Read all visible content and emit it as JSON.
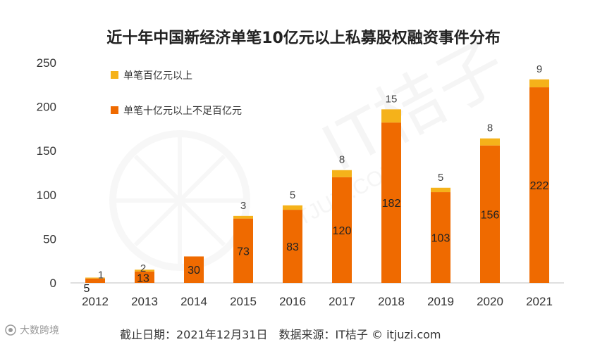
{
  "title": "近十年中国新经济单笔10亿元以上私募股权融资事件分布",
  "source_note": "截止日期：2021年12月31日　数据来源：IT桔子 © itjuzi.com",
  "watermark": {
    "brand": "IT桔子",
    "domain": "ITJUZI.COM"
  },
  "corner_logo": {
    "text": "大数跨境"
  },
  "colors": {
    "series_large": "#f5b21a",
    "series_medium": "#ef6a00",
    "axis": "#bfbfbf",
    "text": "#333333"
  },
  "chart_data": {
    "type": "bar",
    "stacked": true,
    "categories": [
      "2012",
      "2013",
      "2014",
      "2015",
      "2016",
      "2017",
      "2018",
      "2019",
      "2020",
      "2021"
    ],
    "series": [
      {
        "name": "单笔十亿元以上不足百亿元",
        "values": [
          5,
          13,
          30,
          73,
          83,
          120,
          182,
          103,
          156,
          222
        ],
        "labels": [
          "5",
          "13",
          "30",
          "73",
          "83",
          "120",
          "182",
          "103",
          "156",
          "222"
        ]
      },
      {
        "name": "单笔百亿元以上",
        "values": [
          1,
          2,
          0,
          3,
          5,
          8,
          15,
          5,
          8,
          9
        ],
        "labels": [
          "1",
          "2",
          "",
          "3",
          "5",
          "8",
          "15",
          "5",
          "8",
          "9"
        ]
      }
    ],
    "ylim": [
      0,
      250
    ],
    "yticks": [
      "0",
      "50",
      "100",
      "150",
      "200",
      "250"
    ],
    "xlabel": "",
    "ylabel": "",
    "grid": false,
    "legend": [
      "单笔百亿元以上",
      "单笔十亿元以上不足百亿元"
    ],
    "legend_position": "top-left"
  }
}
